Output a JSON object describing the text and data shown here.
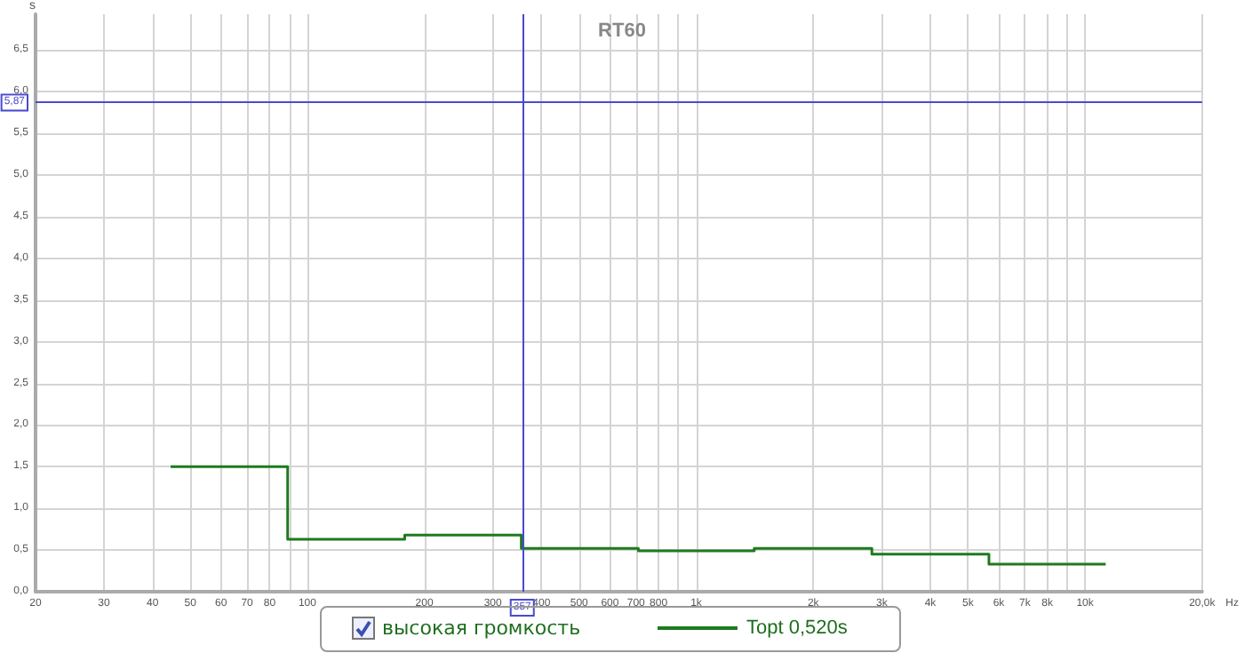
{
  "chart_data": {
    "type": "step",
    "title": "RT60",
    "ylabel": "s",
    "legend_title": "высокая громкость",
    "log": "x",
    "grid": true,
    "legend": "bottom",
    "marker": "none",
    "line_style": "solid",
    "x": [
      44.5,
      89,
      178,
      355,
      710,
      1410,
      2830,
      5660,
      11300
    ],
    "series": [
      {
        "name": "Topt 0,520s",
        "color": "#1e7a1e",
        "values": [
          1.5,
          0.63,
          0.68,
          0.52,
          0.49,
          0.52,
          0.45,
          0.33,
          0.33
        ]
      }
    ],
    "xlim": [
      20,
      20000
    ],
    "xticks": [
      20,
      30,
      40,
      50,
      60,
      70,
      80,
      {
        "value": 90,
        "label": null
      },
      100,
      200,
      300,
      400,
      500,
      600,
      700,
      800,
      {
        "value": 900,
        "label": null
      },
      {
        "value": 1000,
        "label": "1k"
      },
      {
        "value": 2000,
        "label": "2k"
      },
      {
        "value": 3000,
        "label": "3k"
      },
      {
        "value": 4000,
        "label": "4k"
      },
      {
        "value": 5000,
        "label": "5k"
      },
      {
        "value": 6000,
        "label": "6k"
      },
      {
        "value": 7000,
        "label": "7k"
      },
      {
        "value": 8000,
        "label": "8k"
      },
      {
        "value": 9000,
        "label": null
      },
      {
        "value": 10000,
        "label": "10k"
      },
      {
        "value": 20000,
        "label": "20,0k"
      }
    ],
    "xlabel": "Hz",
    "ylim": [
      0,
      6.93
    ],
    "yticks": [
      {
        "value": 0,
        "label": "0,0"
      },
      {
        "value": 0.5,
        "label": "0,5"
      },
      {
        "value": 1,
        "label": "1,0"
      },
      {
        "value": 1.5,
        "label": "1,5"
      },
      {
        "value": 2,
        "label": "2,0"
      },
      {
        "value": 2.5,
        "label": "2,5"
      },
      {
        "value": 3,
        "label": "3,0"
      },
      {
        "value": 3.5,
        "label": "3,5"
      },
      {
        "value": 4,
        "label": "4,0"
      },
      {
        "value": 4.5,
        "label": "4,5"
      },
      {
        "value": 5,
        "label": "5,0"
      },
      {
        "value": 5.5,
        "label": "5,5"
      },
      {
        "value": 6,
        "label": "6,0"
      },
      {
        "value": 6.5,
        "label": "6,5"
      }
    ],
    "ref_lines": [
      {
        "axis": "y",
        "value": 5.87,
        "label": "5,87",
        "color": "#4a4ad0"
      },
      {
        "axis": "x",
        "value": 357,
        "label": "357",
        "color": "#4a4ad0"
      }
    ]
  }
}
